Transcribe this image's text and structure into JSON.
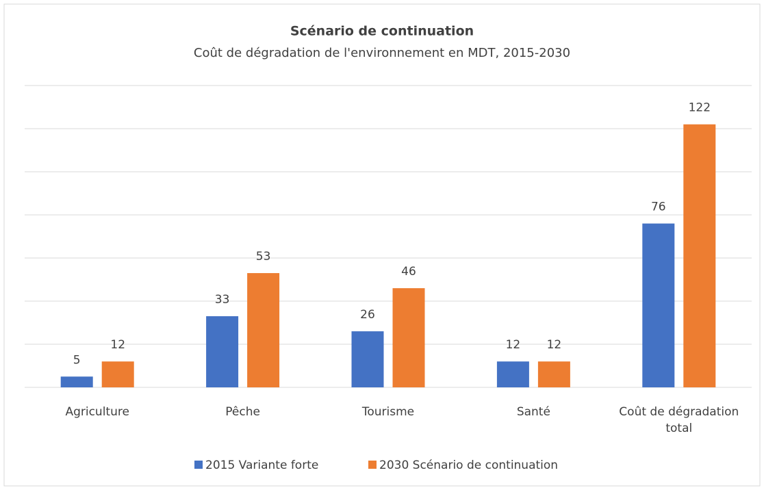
{
  "chart_data": {
    "type": "bar",
    "title": "Scénario de continuation",
    "subtitle": "Coût de dégradation de l'environnement en MDT, 2015-2030",
    "categories": [
      "Agriculture",
      "Pêche",
      "Tourisme",
      "Santé",
      "Coût de dégradation total"
    ],
    "series": [
      {
        "name": "2015 Variante forte",
        "color": "#4472c4",
        "values": [
          5,
          33,
          26,
          12,
          76
        ]
      },
      {
        "name": "2030 Scénario de continuation",
        "color": "#ed7d31",
        "values": [
          12,
          53,
          46,
          12,
          122
        ]
      }
    ],
    "ylim": [
      0,
      140
    ],
    "yticks": [
      0,
      20,
      40,
      60,
      80,
      100,
      120,
      140
    ],
    "grid": true,
    "legend": "bottom"
  }
}
